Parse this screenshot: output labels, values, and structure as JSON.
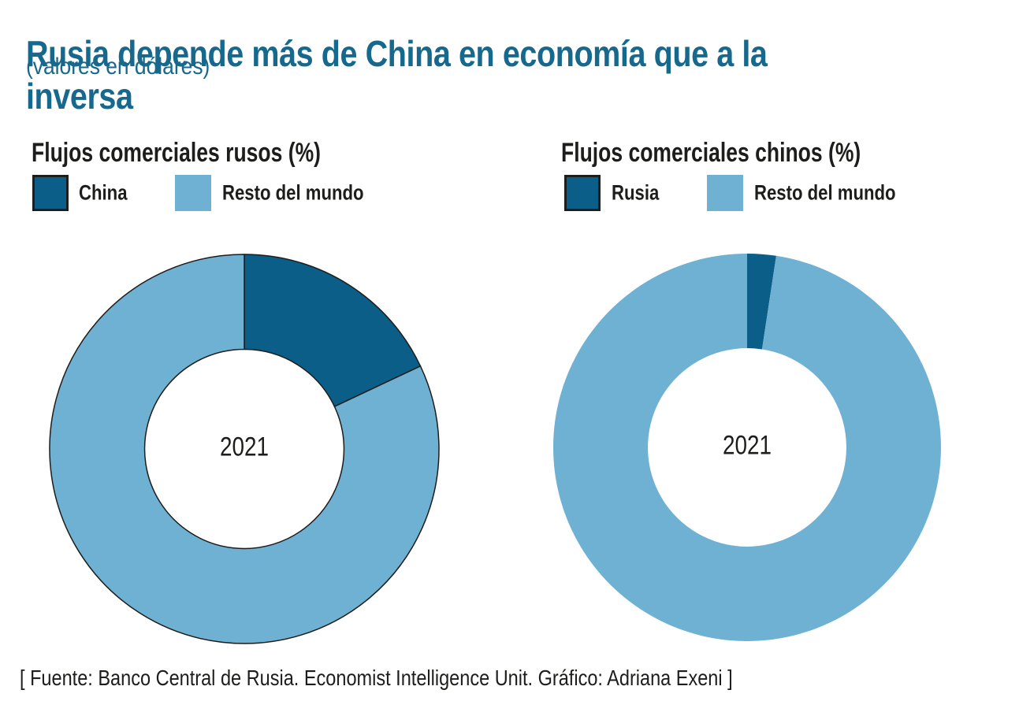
{
  "page": {
    "title": "Rusia depende más de China en economía que a la inversa",
    "subtitle": "(valores en dólares)",
    "source": "[ Fuente: Banco Central de Rusia. Economist Intelligence Unit. Gráfico: Adriana Exeni ]",
    "background": "#ffffff"
  },
  "colors": {
    "title_accent": "#16688c",
    "dark_blue": "#0a5e87",
    "light_blue": "#6fb1d3",
    "outline": "#1d1d1b",
    "text": "#1d1d1b"
  },
  "chart_data": [
    {
      "type": "pie",
      "subtype": "donut",
      "title": "Flujos comerciales rusos (%)",
      "center_label": "2021",
      "direction": "clockwise",
      "start_angle_deg": 0,
      "inner_radius_ratio": 0.512,
      "outlined": true,
      "legend_position": "top",
      "legend": [
        {
          "label": "China",
          "color": "#0a5e87",
          "bordered": true
        },
        {
          "label": "Resto del mundo",
          "color": "#6fb1d3",
          "bordered": false
        }
      ],
      "slices": [
        {
          "label": "China",
          "value": 18,
          "color": "#0a5e87"
        },
        {
          "label": "Resto del mundo",
          "value": 82,
          "color": "#6fb1d3"
        }
      ]
    },
    {
      "type": "pie",
      "subtype": "donut",
      "title": "Flujos comerciales chinos (%)",
      "center_label": "2021",
      "direction": "clockwise",
      "start_angle_deg": 0,
      "inner_radius_ratio": 0.512,
      "outlined": false,
      "legend_position": "top",
      "legend": [
        {
          "label": "Rusia",
          "color": "#0a5e87",
          "bordered": true
        },
        {
          "label": "Resto del mundo",
          "color": "#6fb1d3",
          "bordered": false
        }
      ],
      "slices": [
        {
          "label": "Rusia",
          "value": 2.4,
          "color": "#0a5e87"
        },
        {
          "label": "Resto del mundo",
          "value": 97.6,
          "color": "#6fb1d3"
        }
      ]
    }
  ]
}
